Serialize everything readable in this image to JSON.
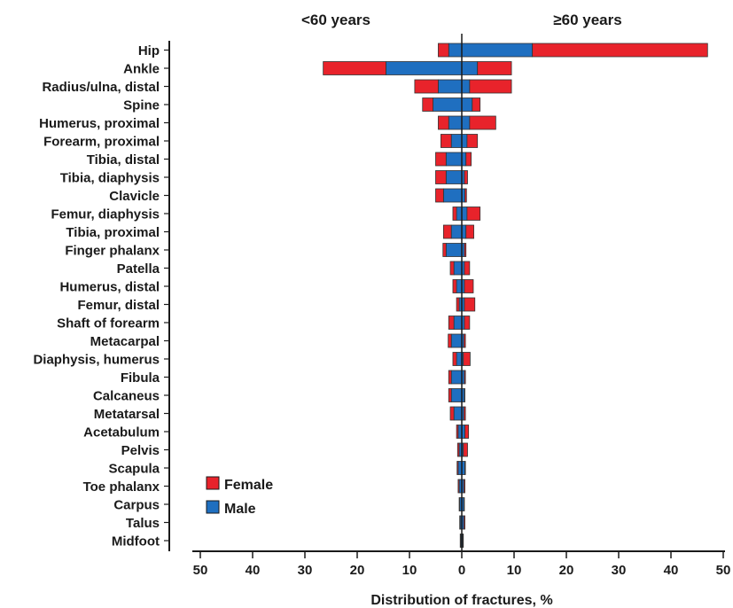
{
  "chart_data": {
    "type": "bar",
    "orientation": "horizontal-butterfly",
    "stacked": true,
    "left_header": "<60 years",
    "right_header": "≥60 years",
    "xlabel": "Distribution of fractures, %",
    "xlim": [
      -50,
      50
    ],
    "xticks": [
      50,
      40,
      30,
      20,
      10,
      0,
      10,
      20,
      30,
      40,
      50
    ],
    "legend_placement": "bottom-left",
    "categories": [
      "Hip",
      "Ankle",
      "Radius/ulna, distal",
      "Spine",
      "Humerus, proximal",
      "Forearm, proximal",
      "Tibia, distal",
      "Tibia, diaphysis",
      "Clavicle",
      "Femur, diaphysis",
      "Tibia, proximal",
      "Finger phalanx",
      "Patella",
      "Humerus, distal",
      "Femur, distal",
      "Shaft of forearm",
      "Metacarpal",
      "Diaphysis, humerus",
      "Fibula",
      "Calcaneus",
      "Metatarsal",
      "Acetabulum",
      "Pelvis",
      "Scapula",
      "Toe phalanx",
      "Carpus",
      "Talus",
      "Midfoot"
    ],
    "series": [
      {
        "name": "Male",
        "color": "#1f6fc0",
        "under60": [
          2.5,
          14.5,
          4.5,
          5.5,
          2.5,
          2,
          3,
          3,
          3.5,
          1,
          2,
          3,
          1.5,
          1,
          0.5,
          1.5,
          2,
          1,
          2,
          2,
          1.5,
          0.7,
          0.5,
          0.7,
          0.5,
          0.4,
          0.3,
          0.2
        ],
        "over60": [
          13.5,
          3,
          1.5,
          2,
          1.5,
          1,
          0.8,
          0.5,
          0.6,
          1,
          0.8,
          0.5,
          0.5,
          0.5,
          0.5,
          0.5,
          0.4,
          0.3,
          0.5,
          0.5,
          0.4,
          0.6,
          0.3,
          0.6,
          0.4,
          0.4,
          0.4,
          0.2
        ]
      },
      {
        "name": "Female",
        "color": "#e8232b",
        "under60": [
          2,
          12,
          4.5,
          2,
          2,
          2,
          2,
          2,
          1.5,
          0.7,
          1.5,
          0.6,
          0.7,
          0.7,
          0.5,
          1,
          0.6,
          0.7,
          0.5,
          0.5,
          0.7,
          0.3,
          0.3,
          0.2,
          0.2,
          0.1,
          0.1,
          0.1
        ],
        "over60": [
          33.5,
          6.5,
          8,
          1.5,
          5,
          2,
          1,
          0.6,
          0.3,
          2.5,
          1.5,
          0.3,
          1,
          1.7,
          2,
          1,
          0.3,
          1.3,
          0.2,
          0.1,
          0.3,
          0.7,
          0.8,
          0.1,
          0.2,
          0.1,
          0.2,
          0.1
        ]
      }
    ]
  }
}
